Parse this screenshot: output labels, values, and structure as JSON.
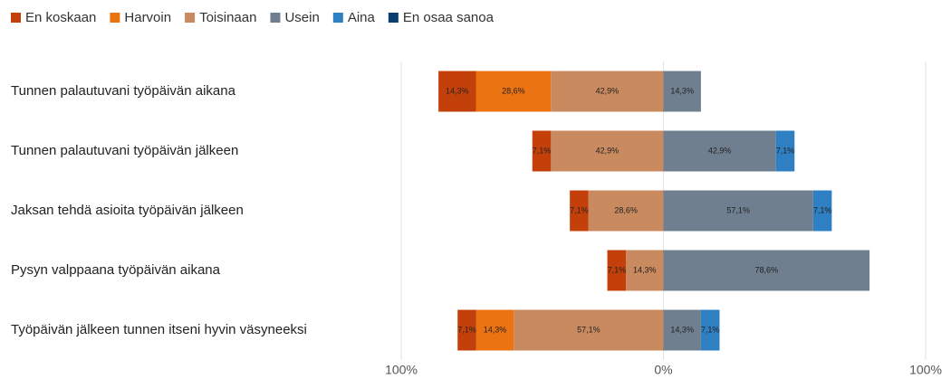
{
  "chart_data": {
    "type": "diverging_bar",
    "categories": [
      "Tunnen palautuvani työpäivän aikana",
      "Tunnen palautuvani työpäivän jälkeen",
      "Jaksan tehdä asioita työpäivän jälkeen",
      "Pysyn valppaana työpäivän aikana",
      "Työpäivän jälkeen tunnen itseni hyvin väsyneeksi"
    ],
    "series": [
      {
        "name": "En koskaan",
        "color": "#c4400a",
        "values": [
          -14.3,
          -7.1,
          -7.1,
          -7.1,
          -7.1
        ],
        "value_labels": [
          "14,3%",
          "7,1%",
          "7,1%",
          "7,1%",
          "7,1%"
        ]
      },
      {
        "name": "Harvoin",
        "color": "#ec7311",
        "values": [
          -28.6,
          null,
          null,
          null,
          -14.3
        ],
        "value_labels": [
          "28,6%",
          null,
          null,
          null,
          "14,3%"
        ]
      },
      {
        "name": "Toisinaan",
        "color": "#c98a5f",
        "values": [
          -42.9,
          -42.9,
          -28.6,
          -14.3,
          -57.1
        ],
        "value_labels": [
          "42,9%",
          "42,9%",
          "28,6%",
          "14,3%",
          "57,1%"
        ]
      },
      {
        "name": "Usein",
        "color": "#6f7f90",
        "values": [
          14.3,
          42.9,
          57.1,
          78.6,
          14.3
        ],
        "value_labels": [
          "14,3%",
          "42,9%",
          "57,1%",
          "78,6%",
          "14,3%"
        ]
      },
      {
        "name": "Aina",
        "color": "#2f80c2",
        "values": [
          null,
          7.1,
          7.1,
          null,
          7.1
        ],
        "value_labels": [
          null,
          "7,1%",
          "7,1%",
          null,
          "7,1%"
        ]
      },
      {
        "name": "En osaa sanoa",
        "color": "#0b3d6e",
        "values": [
          null,
          null,
          null,
          null,
          null
        ],
        "value_labels": [
          null,
          null,
          null,
          null,
          null
        ]
      }
    ],
    "xlim": [
      -100,
      100
    ],
    "xticks": [
      {
        "value": -100,
        "label": "100%"
      },
      {
        "value": 0,
        "label": "0%"
      },
      {
        "value": 100,
        "label": "100%"
      }
    ],
    "grid": true,
    "legend": "top"
  }
}
